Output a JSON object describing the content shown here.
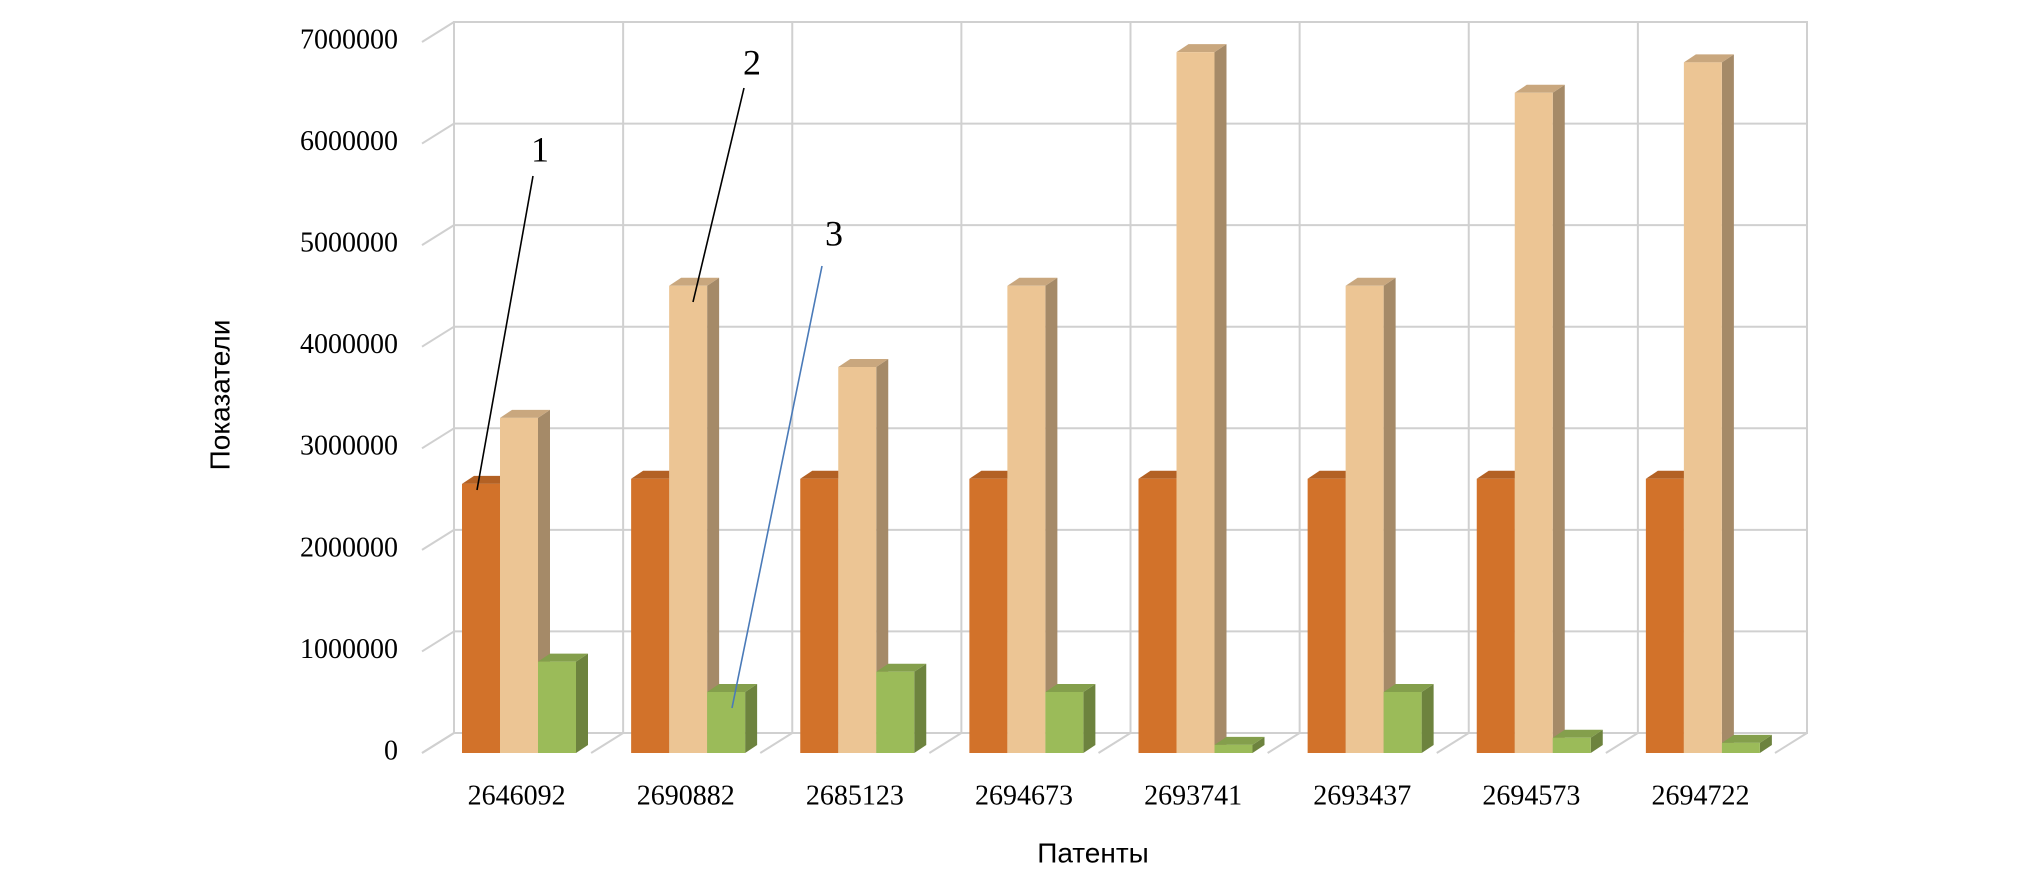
{
  "chart_data": {
    "type": "bar3d",
    "x_label": "Патенты",
    "y_label": "Показатели",
    "categories": [
      "2646092",
      "2690882",
      "2685123",
      "2694673",
      "2693741",
      "2693437",
      "2694573",
      "2694722"
    ],
    "series": [
      {
        "color": "#d2722a",
        "values": [
          2650000,
          2700000,
          2700000,
          2700000,
          2700000,
          2700000,
          2700000,
          2700000
        ]
      },
      {
        "color": "#ecc594",
        "values": [
          3300000,
          4600000,
          3800000,
          4600000,
          6900000,
          4600000,
          6500000,
          6800000
        ]
      },
      {
        "color": "#9bbb59",
        "values": [
          900000,
          600000,
          800000,
          600000,
          80000,
          600000,
          150000,
          100000
        ]
      }
    ],
    "annotations": [
      "1",
      "2",
      "3"
    ],
    "ylim": [
      0,
      7000000
    ],
    "yticks": [
      0,
      1000000,
      2000000,
      3000000,
      4000000,
      5000000,
      6000000,
      7000000
    ],
    "grid": true
  }
}
